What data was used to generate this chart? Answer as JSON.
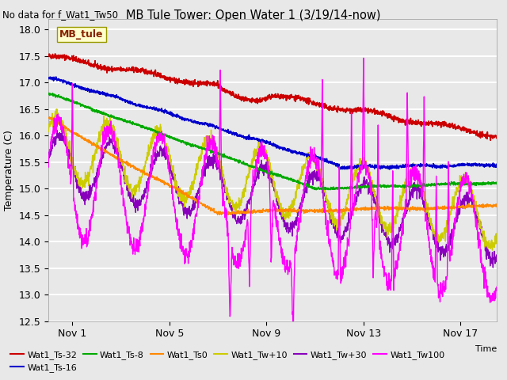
{
  "title": "MB Tule Tower: Open Water 1 (3/19/14-now)",
  "subtitle": "No data for f_Wat1_Tw50",
  "ylabel": "Temperature (C)",
  "xlabel": "Time",
  "ylim": [
    12.5,
    18.2
  ],
  "xlim": [
    0.0,
    18.5
  ],
  "xticks": [
    1,
    5,
    9,
    13,
    17
  ],
  "xticklabels": [
    "Nov 1",
    "Nov 5",
    "Nov 9",
    "Nov 13",
    "Nov 17"
  ],
  "yticks": [
    12.5,
    13.0,
    13.5,
    14.0,
    14.5,
    15.0,
    15.5,
    16.0,
    16.5,
    17.0,
    17.5,
    18.0
  ],
  "bg_color": "#e8e8e8",
  "grid_color": "#ffffff",
  "colors": {
    "ts32": "#cc0000",
    "ts16": "#0000cc",
    "ts8": "#00aa00",
    "ts0": "#ff8800",
    "tw10": "#cccc00",
    "tw30": "#8800bb",
    "tw100": "#ff00ff"
  },
  "legend_box_facecolor": "#ffffcc",
  "legend_box_edgecolor": "#999900",
  "legend_box_text": "MB_tule",
  "legend_box_textcolor": "#882200",
  "fig_width": 6.4,
  "fig_height": 4.8,
  "dpi": 100
}
